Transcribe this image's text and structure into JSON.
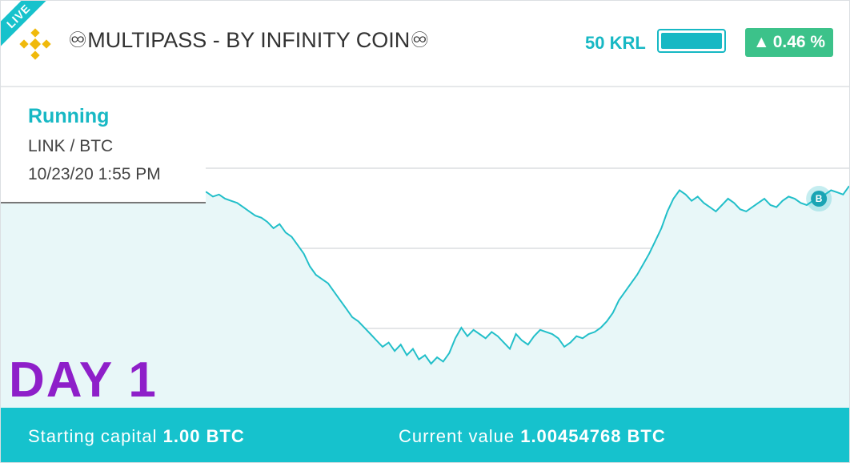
{
  "header": {
    "live_badge": "LIVE",
    "exchange_icon": "binance-logo",
    "title": "♾MULTIPASS - BY INFINITY COIN♾",
    "balance": "50 KRL",
    "progress_fraction": 1.0,
    "change": "0.46 %",
    "change_arrow": "▲"
  },
  "info": {
    "status": "Running",
    "pair": "LINK / BTC",
    "timestamp": "10/23/20 1:55 PM"
  },
  "overlay": {
    "day_label": "DAY 1"
  },
  "marker": {
    "label": "B"
  },
  "footer": {
    "start_label": "Starting capital",
    "start_value": "1.00 BTC",
    "current_label": "Current value",
    "current_value": "1.00454768 BTC"
  },
  "colors": {
    "accent": "#17b8c4",
    "up": "#3cc28a",
    "day": "#8e1fc9",
    "line": "#22bfc9",
    "fill": "#e8f7f8"
  },
  "chart_data": {
    "type": "line",
    "series": [
      {
        "values": [
          0.71,
          0.73,
          0.72,
          0.74,
          0.73,
          0.75,
          0.74,
          0.76,
          0.75,
          0.74,
          0.76,
          0.75,
          0.77,
          0.75,
          0.74,
          0.76,
          0.75,
          0.73,
          0.74,
          0.72,
          0.73,
          0.74,
          0.73,
          0.72,
          0.74,
          0.72,
          0.7,
          0.69,
          0.68,
          0.68,
          0.67,
          0.66,
          0.68,
          0.7,
          0.69,
          0.67,
          0.68,
          0.66,
          0.65,
          0.64,
          0.62,
          0.6,
          0.58,
          0.57,
          0.55,
          0.52,
          0.54,
          0.5,
          0.48,
          0.44,
          0.4,
          0.34,
          0.3,
          0.28,
          0.26,
          0.22,
          0.18,
          0.14,
          0.1,
          0.08,
          0.05,
          0.02,
          -0.01,
          -0.04,
          -0.02,
          -0.06,
          -0.03,
          -0.08,
          -0.05,
          -0.1,
          -0.08,
          -0.12,
          -0.09,
          -0.11,
          -0.07,
          0.0,
          0.05,
          0.01,
          0.04,
          0.02,
          0.0,
          0.03,
          0.01,
          -0.02,
          -0.05,
          0.02,
          -0.01,
          -0.03,
          0.01,
          0.04,
          0.03,
          0.02,
          0.0,
          -0.04,
          -0.02,
          0.01,
          0.0,
          0.02,
          0.03,
          0.05,
          0.08,
          0.12,
          0.18,
          0.22,
          0.26,
          0.3,
          0.35,
          0.4,
          0.46,
          0.52,
          0.6,
          0.66,
          0.7,
          0.68,
          0.65,
          0.67,
          0.64,
          0.62,
          0.6,
          0.63,
          0.66,
          0.64,
          0.61,
          0.6,
          0.62,
          0.64,
          0.66,
          0.63,
          0.62,
          0.65,
          0.67,
          0.66,
          0.64,
          0.63,
          0.65,
          0.66,
          0.68,
          0.7,
          0.69,
          0.68,
          0.72
        ]
      }
    ]
  }
}
